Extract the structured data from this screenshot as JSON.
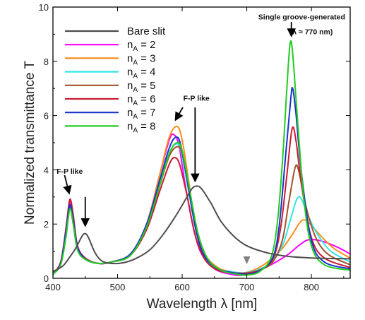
{
  "chart_data": {
    "type": "line",
    "xlabel": "Wavelength λ [nm]",
    "ylabel": "Normalized transmittance T",
    "xlim": [
      400,
      860
    ],
    "ylim": [
      0,
      10
    ],
    "xticks": [
      400,
      500,
      600,
      700,
      800
    ],
    "yticks": [
      0,
      2,
      4,
      6,
      8,
      10
    ],
    "grid": false,
    "legend_position": "top-left",
    "series": [
      {
        "name": "Bare slit",
        "sub": "",
        "value": "",
        "color": "#4d4d4d",
        "points": [
          [
            400,
            0.25
          ],
          [
            415,
            0.45
          ],
          [
            425,
            0.75
          ],
          [
            435,
            1.1
          ],
          [
            445,
            1.55
          ],
          [
            450,
            1.65
          ],
          [
            455,
            1.5
          ],
          [
            465,
            0.95
          ],
          [
            475,
            0.65
          ],
          [
            490,
            0.55
          ],
          [
            510,
            0.58
          ],
          [
            530,
            0.75
          ],
          [
            550,
            1.05
          ],
          [
            570,
            1.6
          ],
          [
            590,
            2.3
          ],
          [
            605,
            2.9
          ],
          [
            615,
            3.3
          ],
          [
            622,
            3.4
          ],
          [
            630,
            3.3
          ],
          [
            645,
            2.75
          ],
          [
            660,
            2.1
          ],
          [
            680,
            1.55
          ],
          [
            700,
            1.2
          ],
          [
            730,
            0.95
          ],
          [
            760,
            0.82
          ],
          [
            800,
            0.75
          ],
          [
            860,
            0.72
          ]
        ]
      },
      {
        "name": "n",
        "sub": "A",
        "value": " = 2",
        "color": "#ff00ff",
        "points": [
          [
            400,
            0.15
          ],
          [
            412,
            0.6
          ],
          [
            420,
            1.8
          ],
          [
            426,
            2.8
          ],
          [
            431,
            2.3
          ],
          [
            438,
            1.2
          ],
          [
            450,
            0.75
          ],
          [
            470,
            0.55
          ],
          [
            490,
            0.6
          ],
          [
            520,
            0.9
          ],
          [
            545,
            2.0
          ],
          [
            565,
            3.8
          ],
          [
            580,
            5.1
          ],
          [
            587,
            5.3
          ],
          [
            595,
            4.9
          ],
          [
            605,
            3.4
          ],
          [
            618,
            1.8
          ],
          [
            630,
            0.9
          ],
          [
            650,
            0.35
          ],
          [
            675,
            0.15
          ],
          [
            695,
            0.12
          ],
          [
            720,
            0.3
          ],
          [
            745,
            0.6
          ],
          [
            765,
            0.9
          ],
          [
            780,
            1.2
          ],
          [
            795,
            1.42
          ],
          [
            815,
            1.38
          ],
          [
            840,
            1.15
          ],
          [
            860,
            0.9
          ]
        ]
      },
      {
        "name": "n",
        "sub": "A",
        "value": " = 3",
        "color": "#ff8c1a",
        "points": [
          [
            400,
            0.15
          ],
          [
            412,
            0.55
          ],
          [
            420,
            1.7
          ],
          [
            426,
            2.7
          ],
          [
            431,
            2.2
          ],
          [
            438,
            1.15
          ],
          [
            450,
            0.72
          ],
          [
            470,
            0.55
          ],
          [
            490,
            0.6
          ],
          [
            520,
            0.9
          ],
          [
            545,
            2.0
          ],
          [
            565,
            3.8
          ],
          [
            580,
            5.2
          ],
          [
            592,
            5.6
          ],
          [
            600,
            5.1
          ],
          [
            610,
            3.6
          ],
          [
            620,
            2.0
          ],
          [
            635,
            0.9
          ],
          [
            655,
            0.4
          ],
          [
            675,
            0.25
          ],
          [
            695,
            0.2
          ],
          [
            715,
            0.35
          ],
          [
            735,
            0.65
          ],
          [
            755,
            1.1
          ],
          [
            770,
            1.6
          ],
          [
            782,
            2.05
          ],
          [
            790,
            2.15
          ],
          [
            800,
            1.95
          ],
          [
            815,
            1.55
          ],
          [
            835,
            1.1
          ],
          [
            860,
            0.75
          ]
        ]
      },
      {
        "name": "n",
        "sub": "A",
        "value": " = 4",
        "color": "#33e6e6",
        "points": [
          [
            400,
            0.15
          ],
          [
            412,
            0.55
          ],
          [
            420,
            1.6
          ],
          [
            426,
            2.6
          ],
          [
            431,
            2.1
          ],
          [
            438,
            1.1
          ],
          [
            450,
            0.7
          ],
          [
            470,
            0.55
          ],
          [
            490,
            0.6
          ],
          [
            520,
            0.85
          ],
          [
            545,
            1.9
          ],
          [
            565,
            3.5
          ],
          [
            580,
            4.6
          ],
          [
            590,
            4.95
          ],
          [
            598,
            4.7
          ],
          [
            610,
            3.2
          ],
          [
            622,
            1.7
          ],
          [
            635,
            0.75
          ],
          [
            655,
            0.35
          ],
          [
            675,
            0.25
          ],
          [
            695,
            0.2
          ],
          [
            715,
            0.3
          ],
          [
            735,
            0.55
          ],
          [
            755,
            1.2
          ],
          [
            768,
            2.2
          ],
          [
            778,
            2.95
          ],
          [
            785,
            2.9
          ],
          [
            795,
            2.3
          ],
          [
            810,
            1.6
          ],
          [
            830,
            1.0
          ],
          [
            860,
            0.6
          ]
        ]
      },
      {
        "name": "n",
        "sub": "A",
        "value": " = 5",
        "color": "#a0522d",
        "points": [
          [
            400,
            0.15
          ],
          [
            412,
            0.55
          ],
          [
            420,
            1.6
          ],
          [
            426,
            2.6
          ],
          [
            431,
            2.1
          ],
          [
            438,
            1.1
          ],
          [
            450,
            0.7
          ],
          [
            470,
            0.55
          ],
          [
            490,
            0.6
          ],
          [
            520,
            0.85
          ],
          [
            545,
            1.9
          ],
          [
            565,
            3.4
          ],
          [
            580,
            4.5
          ],
          [
            592,
            4.85
          ],
          [
            600,
            4.6
          ],
          [
            612,
            3.1
          ],
          [
            625,
            1.6
          ],
          [
            640,
            0.7
          ],
          [
            660,
            0.3
          ],
          [
            680,
            0.2
          ],
          [
            700,
            0.2
          ],
          [
            720,
            0.3
          ],
          [
            740,
            0.6
          ],
          [
            755,
            1.4
          ],
          [
            765,
            2.8
          ],
          [
            775,
            4.1
          ],
          [
            781,
            3.9
          ],
          [
            790,
            2.8
          ],
          [
            805,
            1.6
          ],
          [
            825,
            0.9
          ],
          [
            860,
            0.5
          ]
        ]
      },
      {
        "name": "n",
        "sub": "A",
        "value": " = 6",
        "color": "#cc1a33",
        "points": [
          [
            400,
            0.15
          ],
          [
            412,
            0.6
          ],
          [
            420,
            1.8
          ],
          [
            426,
            2.9
          ],
          [
            431,
            2.4
          ],
          [
            438,
            1.2
          ],
          [
            450,
            0.75
          ],
          [
            470,
            0.55
          ],
          [
            490,
            0.6
          ],
          [
            520,
            0.85
          ],
          [
            545,
            1.8
          ],
          [
            565,
            3.2
          ],
          [
            580,
            4.2
          ],
          [
            588,
            4.45
          ],
          [
            596,
            4.2
          ],
          [
            608,
            3.0
          ],
          [
            620,
            1.6
          ],
          [
            635,
            0.7
          ],
          [
            655,
            0.3
          ],
          [
            680,
            0.2
          ],
          [
            700,
            0.18
          ],
          [
            720,
            0.3
          ],
          [
            740,
            0.7
          ],
          [
            752,
            1.8
          ],
          [
            762,
            3.8
          ],
          [
            770,
            5.5
          ],
          [
            776,
            5.1
          ],
          [
            785,
            3.4
          ],
          [
            800,
            1.5
          ],
          [
            820,
            0.75
          ],
          [
            860,
            0.4
          ]
        ]
      },
      {
        "name": "n",
        "sub": "A",
        "value": " = 7",
        "color": "#1a33cc",
        "points": [
          [
            400,
            0.15
          ],
          [
            412,
            0.55
          ],
          [
            420,
            1.7
          ],
          [
            426,
            2.7
          ],
          [
            431,
            2.2
          ],
          [
            438,
            1.15
          ],
          [
            450,
            0.72
          ],
          [
            470,
            0.55
          ],
          [
            490,
            0.6
          ],
          [
            520,
            0.9
          ],
          [
            545,
            2.0
          ],
          [
            565,
            3.6
          ],
          [
            580,
            4.8
          ],
          [
            590,
            5.2
          ],
          [
            598,
            4.9
          ],
          [
            610,
            3.3
          ],
          [
            622,
            1.7
          ],
          [
            635,
            0.8
          ],
          [
            655,
            0.35
          ],
          [
            680,
            0.2
          ],
          [
            700,
            0.15
          ],
          [
            720,
            0.28
          ],
          [
            740,
            0.75
          ],
          [
            750,
            1.9
          ],
          [
            760,
            4.5
          ],
          [
            768,
            6.6
          ],
          [
            771,
            7.0
          ],
          [
            776,
            6.1
          ],
          [
            785,
            3.8
          ],
          [
            800,
            1.4
          ],
          [
            820,
            0.6
          ],
          [
            860,
            0.35
          ]
        ]
      },
      {
        "name": "n",
        "sub": "A",
        "value": " = 8",
        "color": "#22cc22",
        "points": [
          [
            400,
            0.15
          ],
          [
            412,
            0.5
          ],
          [
            420,
            1.5
          ],
          [
            426,
            2.55
          ],
          [
            431,
            2.05
          ],
          [
            438,
            1.05
          ],
          [
            450,
            0.7
          ],
          [
            470,
            0.55
          ],
          [
            490,
            0.6
          ],
          [
            520,
            0.85
          ],
          [
            545,
            1.9
          ],
          [
            565,
            3.4
          ],
          [
            580,
            4.6
          ],
          [
            592,
            5.0
          ],
          [
            600,
            4.7
          ],
          [
            612,
            3.2
          ],
          [
            625,
            1.6
          ],
          [
            640,
            0.7
          ],
          [
            660,
            0.3
          ],
          [
            685,
            0.15
          ],
          [
            700,
            0.12
          ],
          [
            720,
            0.25
          ],
          [
            738,
            0.8
          ],
          [
            748,
            2.2
          ],
          [
            756,
            4.6
          ],
          [
            762,
            7.0
          ],
          [
            767,
            8.65
          ],
          [
            771,
            8.3
          ],
          [
            778,
            6.0
          ],
          [
            788,
            3.0
          ],
          [
            800,
            1.2
          ],
          [
            820,
            0.5
          ],
          [
            860,
            0.3
          ]
        ]
      }
    ],
    "annotations": [
      {
        "text": "F-P like",
        "x": 426,
        "y": 3.85
      },
      {
        "text": "F-P like",
        "x": 622,
        "y": 6.55
      },
      {
        "text": "Single groove-generated",
        "x": 785,
        "y": 9.55
      },
      {
        "text": "(λ ≈ 770 nm)",
        "x": 800,
        "y": 9.0
      }
    ],
    "arrows": [
      {
        "from": [
          418,
          3.8
        ],
        "to": [
          425,
          3.15
        ]
      },
      {
        "from": [
          450,
          3.0
        ],
        "to": [
          450,
          1.95
        ]
      },
      {
        "from": [
          601,
          6.3
        ],
        "to": [
          590,
          5.85
        ]
      },
      {
        "from": [
          620,
          6.3
        ],
        "to": [
          620,
          3.6
        ]
      },
      {
        "from": [
          769,
          9.45
        ],
        "to": [
          769,
          8.95
        ]
      }
    ],
    "markers": [
      {
        "type": "triangle-down",
        "x": 700,
        "y": 0.65
      }
    ]
  }
}
